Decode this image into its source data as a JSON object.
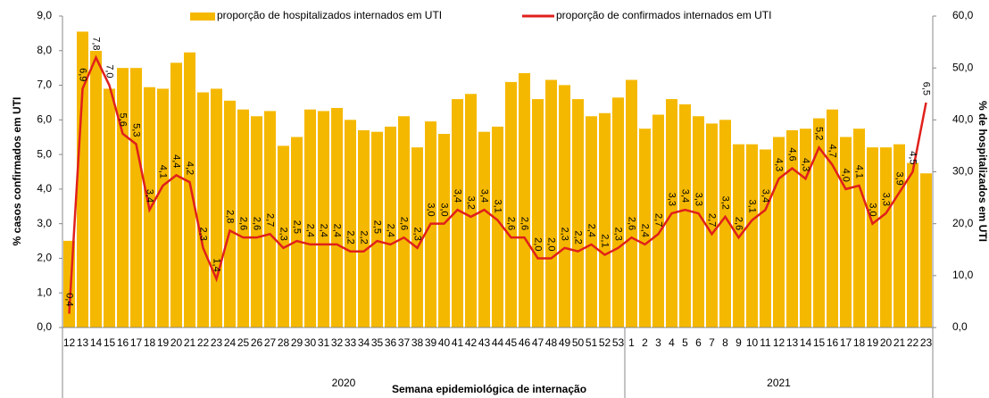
{
  "chart_data": {
    "type": "bar_line",
    "x_label": "Semana epidemiológica de internação",
    "y_label": "% casos confirmados em UTI",
    "y2_label": "% de hospitalizados em UTI",
    "categories": [
      "12",
      "13",
      "14",
      "15",
      "16",
      "17",
      "18",
      "19",
      "20",
      "21",
      "22",
      "23",
      "24",
      "25",
      "26",
      "27",
      "28",
      "29",
      "30",
      "31",
      "32",
      "33",
      "34",
      "35",
      "36",
      "37",
      "38",
      "39",
      "40",
      "41",
      "42",
      "43",
      "44",
      "45",
      "46",
      "47",
      "48",
      "49",
      "50",
      "51",
      "52",
      "53",
      "1",
      "2",
      "3",
      "4",
      "5",
      "6",
      "7",
      "8",
      "9",
      "10",
      "11",
      "12",
      "13",
      "14",
      "15",
      "16",
      "17",
      "18",
      "19",
      "20",
      "21",
      "22",
      "23"
    ],
    "groups": [
      {
        "label": "2020",
        "span": 42
      },
      {
        "label": "2021",
        "span": 23
      }
    ],
    "ylim": [
      0,
      9
    ],
    "yticks": [
      {
        "value": 0,
        "label": "0,0"
      },
      {
        "value": 1,
        "label": "1,0"
      },
      {
        "value": 2,
        "label": "2,0"
      },
      {
        "value": 3,
        "label": "3,0"
      },
      {
        "value": 4,
        "label": "4,0"
      },
      {
        "value": 5,
        "label": "5,0"
      },
      {
        "value": 6,
        "label": "6,0"
      },
      {
        "value": 7,
        "label": "7,0"
      },
      {
        "value": 8,
        "label": "8,0"
      },
      {
        "value": 9,
        "label": "9,0"
      }
    ],
    "y2lim": [
      0,
      60
    ],
    "y2ticks": [
      {
        "value": 0,
        "label": "0,0"
      },
      {
        "value": 10,
        "label": "10,0"
      },
      {
        "value": 20,
        "label": "20,0"
      },
      {
        "value": 30,
        "label": "30,0"
      },
      {
        "value": 40,
        "label": "40,0"
      },
      {
        "value": 50,
        "label": "50,0"
      },
      {
        "value": 60,
        "label": "60,0"
      }
    ],
    "series": [
      {
        "name": "proporção de hospitalizados internados em UTI",
        "type": "bar",
        "axis": "y2",
        "color": "#f5b800",
        "values": [
          16.7,
          57,
          53.3,
          46,
          50,
          50,
          46.3,
          46,
          51,
          53,
          45.3,
          46,
          43.7,
          42,
          40.7,
          41.7,
          35,
          36.7,
          42,
          41.7,
          42.3,
          40,
          38,
          37.7,
          38.7,
          40.7,
          34.7,
          39.7,
          37.3,
          44,
          45,
          37.7,
          38.7,
          47.3,
          49,
          44,
          47.7,
          46.7,
          44,
          40.7,
          41.3,
          44.3,
          47.7,
          38.3,
          41,
          44,
          43,
          40.7,
          39.3,
          40,
          35.3,
          35.3,
          34.3,
          36.7,
          38,
          38.3,
          40.3,
          42,
          36.7,
          38.3,
          34.7,
          34.7,
          35.3,
          31.7,
          29.7
        ]
      },
      {
        "name": "proporção de confirmados internados em UTI",
        "type": "line",
        "axis": "y",
        "color": "#e0201b",
        "values": [
          0.4,
          6.9,
          7.8,
          7.0,
          5.6,
          5.3,
          3.4,
          4.1,
          4.4,
          4.2,
          2.3,
          1.4,
          2.8,
          2.6,
          2.6,
          2.7,
          2.3,
          2.5,
          2.4,
          2.4,
          2.4,
          2.2,
          2.2,
          2.5,
          2.4,
          2.6,
          2.3,
          3.0,
          3.0,
          3.4,
          3.2,
          3.4,
          3.1,
          2.6,
          2.6,
          2.0,
          2.0,
          2.3,
          2.2,
          2.4,
          2.1,
          2.3,
          2.6,
          2.4,
          2.7,
          3.3,
          3.4,
          3.3,
          2.7,
          3.2,
          2.6,
          3.1,
          3.4,
          4.3,
          4.6,
          4.3,
          5.2,
          4.7,
          4.0,
          4.1,
          3.0,
          3.3,
          3.9,
          4.5,
          6.5
        ],
        "value_labels": [
          "0,4",
          "6,9",
          "7,8",
          "7,0",
          "5,6",
          "5,3",
          "3,4",
          "4,1",
          "4,4",
          "4,2",
          "2,3",
          "1,4",
          "2,8",
          "2,6",
          "2,6",
          "2,7",
          "2,3",
          "2,5",
          "2,4",
          "2,4",
          "2,4",
          "2,2",
          "2,2",
          "2,5",
          "2,4",
          "2,6",
          "2,3",
          "3,0",
          "3,0",
          "3,4",
          "3,2",
          "3,4",
          "3,1",
          "2,6",
          "2,6",
          "2,0",
          "2,0",
          "2,3",
          "2,2",
          "2,4",
          "2,1",
          "2,3",
          "2,6",
          "2,4",
          "2,7",
          "3,3",
          "3,4",
          "3,3",
          "2,7",
          "3,2",
          "2,6",
          "3,1",
          "3,4",
          "4,3",
          "4,6",
          "4,3",
          "5,2",
          "4,7",
          "4,0",
          "4,1",
          "3,0",
          "3,3",
          "3,9",
          "4,5",
          "6,5"
        ]
      }
    ]
  }
}
